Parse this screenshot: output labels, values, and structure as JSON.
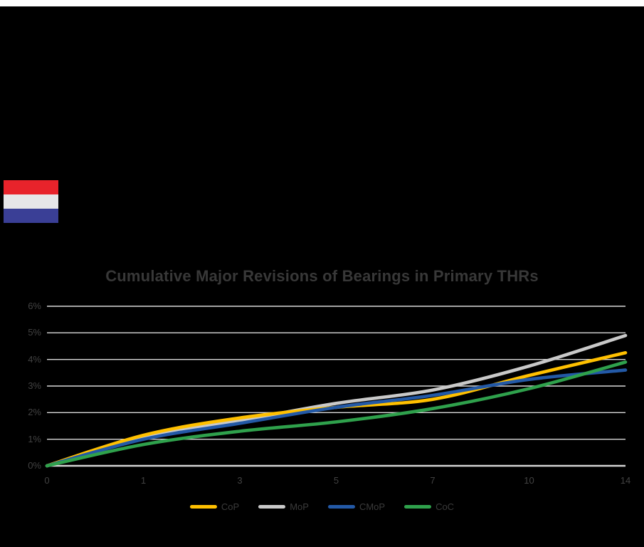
{
  "page": {
    "background_color": "#000000",
    "top_strip_color": "#ffffff"
  },
  "flag": {
    "name": "netherlands-flag",
    "bands": [
      {
        "name": "red",
        "color": "#e8232b"
      },
      {
        "name": "white",
        "color": "#e6e6e8"
      },
      {
        "name": "blue",
        "color": "#3a3f96"
      }
    ]
  },
  "chart_data": {
    "type": "line",
    "title": "Cumulative Major Revisions of Bearings in Primary THRs",
    "xlabel": "",
    "ylabel": "",
    "x_tick_labels": [
      "0",
      "1",
      "3",
      "5",
      "7",
      "10",
      "14"
    ],
    "y_tick_labels": [
      "0%",
      "1%",
      "2%",
      "3%",
      "4%",
      "5%",
      "6%"
    ],
    "ylim": [
      0,
      6
    ],
    "grid": true,
    "legend_position": "bottom",
    "series": [
      {
        "name": "CoP",
        "color": "#FFC000",
        "values": [
          0,
          1.15,
          1.8,
          2.2,
          2.5,
          3.4,
          4.25
        ]
      },
      {
        "name": "MoP",
        "color": "#C9C9C9",
        "values": [
          0,
          1.1,
          1.7,
          2.35,
          2.85,
          3.75,
          4.9
        ]
      },
      {
        "name": "CMoP",
        "color": "#2359A6",
        "values": [
          0,
          1.0,
          1.6,
          2.2,
          2.65,
          3.25,
          3.6
        ]
      },
      {
        "name": "CoC",
        "color": "#2FA14C",
        "values": [
          0,
          0.8,
          1.3,
          1.65,
          2.15,
          2.9,
          3.9
        ]
      }
    ],
    "draw_order": [
      "MoP",
      "CoP",
      "CMoP",
      "CoC"
    ],
    "colors": {
      "gridline": "#D9D9D9",
      "axis_line": "#D4D4D4",
      "title_text": "#383838",
      "tick_text": "#424242",
      "legend_text": "#3b3b3b"
    }
  }
}
